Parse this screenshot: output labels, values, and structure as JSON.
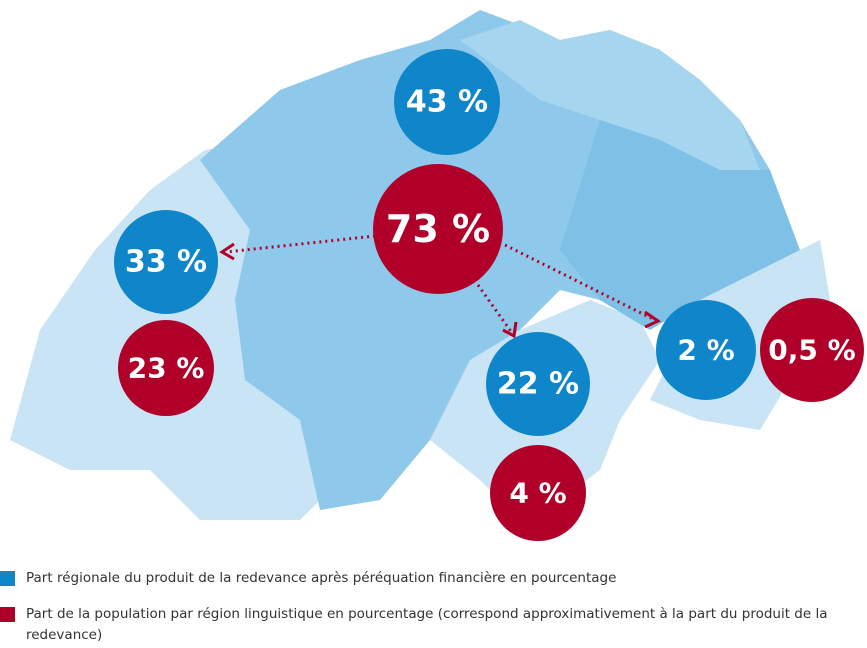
{
  "map": {
    "regions": [
      {
        "regional_share": "43 %",
        "population_share": "73 %"
      },
      {
        "regional_share": "33 %",
        "population_share": "23 %"
      },
      {
        "regional_share": "22 %",
        "population_share": "4 %"
      },
      {
        "regional_share": "2 %",
        "population_share": "0,5 %"
      }
    ]
  },
  "legend": [
    {
      "label": "Part régionale du produit de la redevance après péréquation financière en pourcentage",
      "color": "#0e86c9"
    },
    {
      "label": "Part de la population par région linguistique en pourcentage (correspond approximativement à la part du produit de la redevance)",
      "color": "#b0002a"
    }
  ]
}
